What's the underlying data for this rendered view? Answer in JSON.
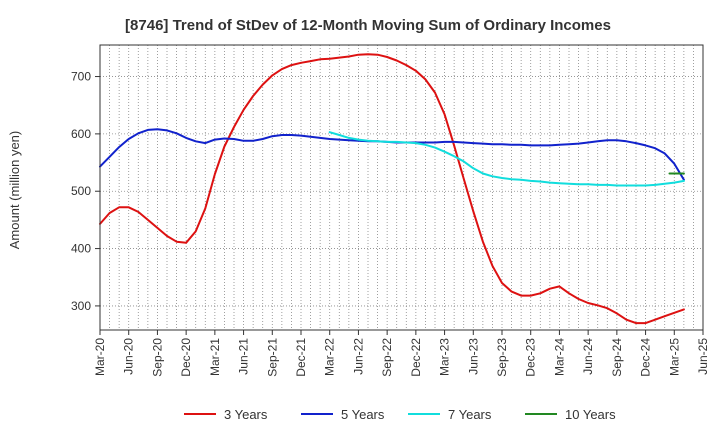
{
  "chart_data": {
    "type": "line",
    "title": "[8746]  Trend of StDev of 12-Month Moving Sum of Ordinary Incomes",
    "xlabel": "",
    "ylabel": "Amount (million yen)",
    "ylim": [
      258,
      755
    ],
    "yticks": [
      300,
      400,
      500,
      600,
      700
    ],
    "x_tick_labels": [
      "Mar-20",
      "Jun-20",
      "Sep-20",
      "Dec-20",
      "Mar-21",
      "Jun-21",
      "Sep-21",
      "Dec-21",
      "Mar-22",
      "Jun-22",
      "Sep-22",
      "Dec-22",
      "Mar-23",
      "Jun-23",
      "Sep-23",
      "Dec-23",
      "Mar-24",
      "Jun-24",
      "Sep-24",
      "Dec-24",
      "Mar-25",
      "Jun-25"
    ],
    "x_unit": "months since Mar-20",
    "grid": true,
    "legend_position": "bottom",
    "series": [
      {
        "name": "3 Years",
        "color": "#dd1111",
        "points": [
          [
            0,
            443
          ],
          [
            1,
            462
          ],
          [
            2,
            472
          ],
          [
            3,
            472
          ],
          [
            4,
            464
          ],
          [
            5,
            450
          ],
          [
            6,
            436
          ],
          [
            7,
            422
          ],
          [
            8,
            412
          ],
          [
            9,
            410
          ],
          [
            10,
            430
          ],
          [
            11,
            470
          ],
          [
            12,
            530
          ],
          [
            13,
            578
          ],
          [
            14,
            612
          ],
          [
            15,
            642
          ],
          [
            16,
            666
          ],
          [
            17,
            686
          ],
          [
            18,
            702
          ],
          [
            19,
            713
          ],
          [
            20,
            720
          ],
          [
            21,
            724
          ],
          [
            22,
            727
          ],
          [
            23,
            730
          ],
          [
            24,
            731
          ],
          [
            25,
            733
          ],
          [
            26,
            735
          ],
          [
            27,
            738
          ],
          [
            28,
            739
          ],
          [
            29,
            738
          ],
          [
            30,
            734
          ],
          [
            31,
            728
          ],
          [
            32,
            720
          ],
          [
            33,
            710
          ],
          [
            34,
            695
          ],
          [
            35,
            672
          ],
          [
            36,
            634
          ],
          [
            37,
            580
          ],
          [
            38,
            522
          ],
          [
            39,
            465
          ],
          [
            40,
            412
          ],
          [
            41,
            370
          ],
          [
            42,
            340
          ],
          [
            43,
            325
          ],
          [
            44,
            318
          ],
          [
            45,
            318
          ],
          [
            46,
            322
          ],
          [
            47,
            330
          ],
          [
            48,
            334
          ],
          [
            49,
            322
          ],
          [
            50,
            312
          ],
          [
            51,
            305
          ],
          [
            52,
            301
          ],
          [
            53,
            296
          ],
          [
            54,
            287
          ],
          [
            55,
            276
          ],
          [
            56,
            270
          ],
          [
            57,
            270
          ],
          [
            58,
            276
          ],
          [
            59,
            282
          ],
          [
            60,
            288
          ],
          [
            61,
            294
          ]
        ]
      },
      {
        "name": "5 Years",
        "color": "#1122cc",
        "points": [
          [
            0,
            543
          ],
          [
            1,
            560
          ],
          [
            2,
            577
          ],
          [
            3,
            591
          ],
          [
            4,
            601
          ],
          [
            5,
            607
          ],
          [
            6,
            608
          ],
          [
            7,
            606
          ],
          [
            8,
            601
          ],
          [
            9,
            593
          ],
          [
            10,
            587
          ],
          [
            11,
            584
          ],
          [
            12,
            590
          ],
          [
            13,
            592
          ],
          [
            14,
            591
          ],
          [
            15,
            588
          ],
          [
            16,
            588
          ],
          [
            17,
            591
          ],
          [
            18,
            596
          ],
          [
            19,
            598
          ],
          [
            20,
            598
          ],
          [
            21,
            597
          ],
          [
            22,
            595
          ],
          [
            23,
            593
          ],
          [
            24,
            591
          ],
          [
            25,
            590
          ],
          [
            26,
            589
          ],
          [
            27,
            588
          ],
          [
            28,
            587
          ],
          [
            29,
            587
          ],
          [
            30,
            586
          ],
          [
            31,
            585
          ],
          [
            32,
            585
          ],
          [
            33,
            585
          ],
          [
            34,
            585
          ],
          [
            35,
            585
          ],
          [
            36,
            586
          ],
          [
            37,
            586
          ],
          [
            38,
            585
          ],
          [
            39,
            584
          ],
          [
            40,
            583
          ],
          [
            41,
            582
          ],
          [
            42,
            582
          ],
          [
            43,
            581
          ],
          [
            44,
            581
          ],
          [
            45,
            580
          ],
          [
            46,
            580
          ],
          [
            47,
            580
          ],
          [
            48,
            581
          ],
          [
            49,
            582
          ],
          [
            50,
            583
          ],
          [
            51,
            585
          ],
          [
            52,
            587
          ],
          [
            53,
            589
          ],
          [
            54,
            589
          ],
          [
            55,
            587
          ],
          [
            56,
            584
          ],
          [
            57,
            580
          ],
          [
            58,
            575
          ],
          [
            59,
            566
          ],
          [
            60,
            548
          ],
          [
            61,
            520
          ]
        ]
      },
      {
        "name": "7 Years",
        "color": "#11dddd",
        "points": [
          [
            24,
            603
          ],
          [
            25,
            598
          ],
          [
            26,
            593
          ],
          [
            27,
            590
          ],
          [
            28,
            588
          ],
          [
            29,
            587
          ],
          [
            30,
            586
          ],
          [
            31,
            586
          ],
          [
            32,
            585
          ],
          [
            33,
            584
          ],
          [
            34,
            581
          ],
          [
            35,
            576
          ],
          [
            36,
            569
          ],
          [
            37,
            561
          ],
          [
            38,
            552
          ],
          [
            39,
            540
          ],
          [
            40,
            531
          ],
          [
            41,
            526
          ],
          [
            42,
            523
          ],
          [
            43,
            521
          ],
          [
            44,
            520
          ],
          [
            45,
            518
          ],
          [
            46,
            517
          ],
          [
            47,
            515
          ],
          [
            48,
            514
          ],
          [
            49,
            513
          ],
          [
            50,
            512
          ],
          [
            51,
            512
          ],
          [
            52,
            511
          ],
          [
            53,
            511
          ],
          [
            54,
            510
          ],
          [
            55,
            510
          ],
          [
            56,
            510
          ],
          [
            57,
            510
          ],
          [
            58,
            511
          ],
          [
            59,
            513
          ],
          [
            60,
            515
          ],
          [
            61,
            518
          ]
        ]
      },
      {
        "name": "10 Years",
        "color": "#228822",
        "points": [
          [
            59.5,
            531
          ],
          [
            61,
            531
          ]
        ]
      }
    ]
  }
}
